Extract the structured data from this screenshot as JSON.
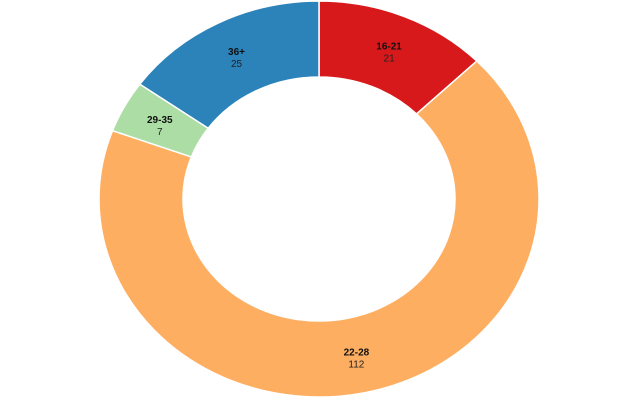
{
  "page": {
    "background_color": "#ffffff"
  },
  "chart_data": {
    "type": "pie",
    "variant": "donut",
    "title": "",
    "legend": "none",
    "labels_position": "inside-ring, two lines (category over value)",
    "start_angle_deg": 0,
    "direction": "clockwise",
    "categories": [
      "16-21",
      "22-28",
      "29-35",
      "36+"
    ],
    "values": [
      21,
      112,
      7,
      25
    ],
    "total": 165,
    "segments": [
      {
        "label": "16-21",
        "value": 21,
        "color": "#d7191c"
      },
      {
        "label": "22-28",
        "value": 112,
        "color": "#fdae61"
      },
      {
        "label": "29-35",
        "value": 7,
        "color": "#abdda4"
      },
      {
        "label": "36+",
        "value": 25,
        "color": "#2b83ba"
      }
    ],
    "label_text_color": "#111111",
    "divider_color": "#ffffff",
    "hole_color": "#ffffff"
  }
}
